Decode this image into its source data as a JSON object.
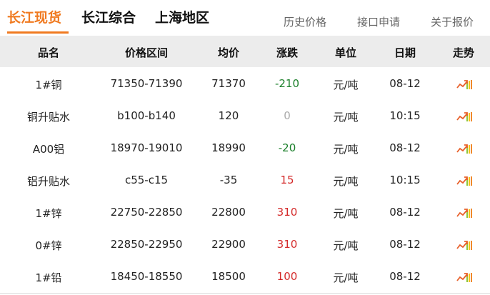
{
  "tabs": [
    {
      "label": "长江现货",
      "active": true
    },
    {
      "label": "长江综合"
    },
    {
      "label": "上海地区"
    }
  ],
  "links": [
    "历史价格",
    "接口申请",
    "关于报价"
  ],
  "columns": [
    "品名",
    "价格区间",
    "均价",
    "涨跌",
    "单位",
    "日期",
    "走势"
  ],
  "colors": {
    "accent": "#f07a20",
    "down": "#1a7f2a",
    "up": "#d42a2a",
    "flat": "#aaaaaa"
  },
  "rows": [
    {
      "name": "1#铜",
      "range": "71350-71390",
      "avg": "71370",
      "change": "-210",
      "unit": "元/吨",
      "date": "08-12",
      "dir": "down"
    },
    {
      "name": "铜升贴水",
      "range": "b100-b140",
      "avg": "120",
      "change": "0",
      "unit": "元/吨",
      "date": "10:15",
      "dir": "flat"
    },
    {
      "name": "A00铝",
      "range": "18970-19010",
      "avg": "18990",
      "change": "-20",
      "unit": "元/吨",
      "date": "08-12",
      "dir": "down"
    },
    {
      "name": "铝升贴水",
      "range": "c55-c15",
      "avg": "-35",
      "change": "15",
      "unit": "元/吨",
      "date": "10:15",
      "dir": "up"
    },
    {
      "name": "1#锌",
      "range": "22750-22850",
      "avg": "22800",
      "change": "310",
      "unit": "元/吨",
      "date": "08-12",
      "dir": "up"
    },
    {
      "name": "0#锌",
      "range": "22850-22950",
      "avg": "22900",
      "change": "310",
      "unit": "元/吨",
      "date": "08-12",
      "dir": "up"
    },
    {
      "name": "1#铅",
      "range": "18450-18550",
      "avg": "18500",
      "change": "100",
      "unit": "元/吨",
      "date": "08-12",
      "dir": "up"
    }
  ],
  "trend_icon": "trend-chart-icon"
}
